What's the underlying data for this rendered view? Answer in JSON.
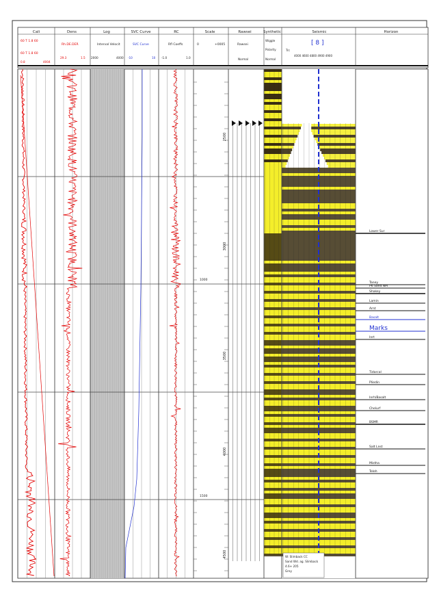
{
  "header": {
    "columns": [
      {
        "key": "caliper",
        "label": "Cali"
      },
      {
        "key": "density",
        "label": "Dens"
      },
      {
        "key": "log",
        "label": "Log"
      },
      {
        "key": "sv1",
        "label": "SVC Curve"
      },
      {
        "key": "rc",
        "label": "RC"
      },
      {
        "key": "scale",
        "label": "Scale"
      },
      {
        "key": "rawsei",
        "label": "Rawsei"
      },
      {
        "key": "synthetic",
        "label": "Synthetic"
      },
      {
        "key": "seismic",
        "label": "Seismic"
      },
      {
        "key": "horizon",
        "label": "Horizon"
      }
    ],
    "row2": {
      "caliper_top": "60 T 1.8 60",
      "caliper_mid": "60 T 1.8 60",
      "density": "Rh.DE.DER",
      "log": "Interval Velocit",
      "sv1": "SVC Curve",
      "rc": "Rfl Coeffs",
      "scale_left": "0",
      "scale_right": "+0005",
      "rawsei": "Rawsei",
      "synthetic_a": "Wiggle",
      "synthetic_b": "Polarity",
      "seismic_code": "[ 8 ]",
      "seismic_label": "Trc",
      "seismic_ticks": "4000  4600  4800  4900  4900"
    },
    "row3": {
      "caliper": "0.8",
      "caliper_val": "4004",
      "density_a": "29.3",
      "density_b": "1.5",
      "log_a": "2000",
      "log_b": "4000",
      "sv1_a": "-10",
      "sv1_b": "10",
      "rc_a": "-1.0",
      "rc_b": "1.0",
      "rawsei": "Normal",
      "synthetic": "Normal"
    }
  },
  "scale": {
    "time_labels": [
      "2500",
      "3000",
      "3500",
      "4000",
      "4500"
    ],
    "aux_labels": [
      "1000",
      "1500"
    ]
  },
  "horizons": [
    {
      "label": "Lower Sur"
    },
    {
      "label": "Taney"
    },
    {
      "label": "P6 Sand NM"
    },
    {
      "label": "Shakey"
    },
    {
      "label": "Lamin"
    },
    {
      "label": "Arnt"
    },
    {
      "label": "Basalt"
    },
    {
      "label": "Marks"
    },
    {
      "label": "Inrt"
    },
    {
      "label": "Tidarcal"
    },
    {
      "label": "Pliedin"
    },
    {
      "label": "Inrh/Basalt"
    },
    {
      "label": "Chelurf"
    },
    {
      "label": "BSMR"
    },
    {
      "label": "Salt Lnst"
    },
    {
      "label": "Mistha"
    },
    {
      "label": "Teleh"
    }
  ],
  "annotation": {
    "line1": "W: Slimback CC",
    "line2": "Sand Wd. ag. Slimback",
    "line3": "4.6+ 205",
    "line4": "Grey"
  },
  "colors": {
    "log_red": "#e30000",
    "grid": "#444444",
    "seismic_yellow": "#f4ee2a",
    "seismic_dark": "#3a2e12",
    "marker_blue": "#1f2fd0",
    "panel_gray": "#b9b9b9"
  }
}
